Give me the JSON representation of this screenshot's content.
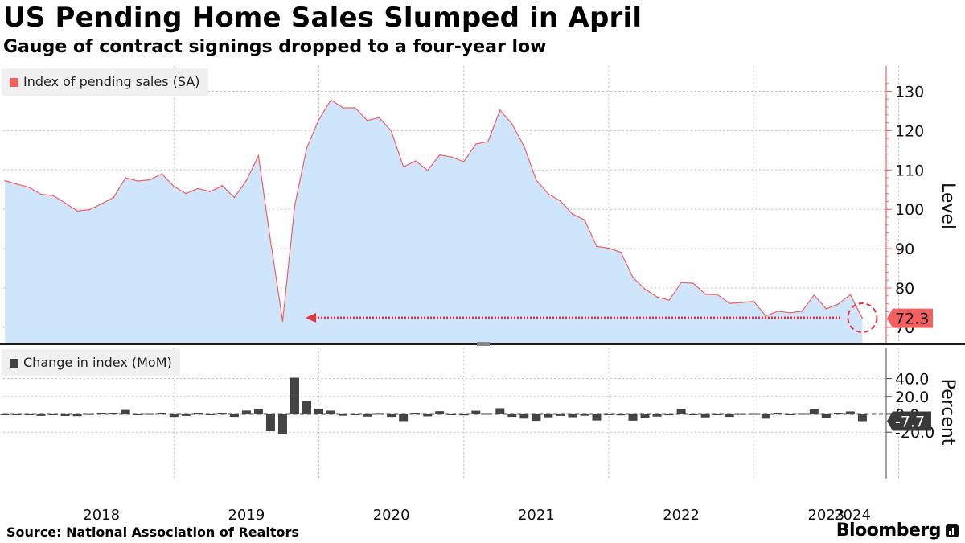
{
  "header": {
    "title": "US Pending Home Sales Slumped in April",
    "subtitle": "Gauge of contract signings dropped to a four-year low"
  },
  "footer": {
    "source": "Source: National Association of Realtors",
    "brand": "Bloomberg"
  },
  "colors": {
    "line": "#f26060",
    "area": "#cfe5fb",
    "bar": "#444444",
    "grid": "#bbbbbb",
    "axis_top": "#f26060",
    "annotation": "#e8333b",
    "last_value_bg": "#f26060"
  },
  "chart_data": [
    {
      "type": "area",
      "legend": "Index of pending sales (SA)",
      "ylabel": "Level",
      "ylim": [
        64,
        134
      ],
      "yticks": [
        "70",
        "80",
        "90",
        "100",
        "110",
        "120",
        "130"
      ],
      "last_value_label": "72.3",
      "x_start": "2017-11",
      "values": [
        107.3,
        106.4,
        105.6,
        103.8,
        103.5,
        101.6,
        99.6,
        99.9,
        101.4,
        103,
        108,
        107.2,
        107.5,
        109,
        105.8,
        104,
        105.3,
        104.5,
        106,
        103,
        107.3,
        113.6,
        92,
        71.6,
        101,
        115.6,
        122.8,
        127.8,
        125.8,
        125.8,
        122.6,
        123.3,
        119.9,
        110.8,
        112.3,
        109.9,
        113.8,
        113.3,
        112.1,
        116.6,
        117.2,
        125.2,
        121.7,
        115.9,
        107.4,
        103.9,
        102.1,
        98.8,
        97.3,
        90.6,
        90.1,
        89.1,
        82.7,
        79.7,
        77.7,
        76.9,
        81.4,
        81.2,
        78.4,
        78.3,
        76.1,
        76.3,
        76.6,
        72.9,
        74.1,
        73.7,
        74.1,
        78.2,
        74.7,
        75.9,
        78.3,
        72.3
      ]
    },
    {
      "type": "bar",
      "legend": "Change in index (MoM)",
      "ylabel": "Percent",
      "ylim": [
        -30,
        48
      ],
      "yticks": [
        "40.0",
        "20.0",
        "0.0",
        "-20.0"
      ],
      "last_value_label": "-7.7",
      "x_start": "2017-11",
      "values": [
        -0.5,
        -0.8,
        -0.8,
        -1.7,
        -0.3,
        -1.8,
        -2,
        0.3,
        1.5,
        1.6,
        4.9,
        -0.8,
        0.4,
        1.4,
        -2.9,
        -1.7,
        1.3,
        -0.8,
        1.8,
        -2.8,
        4.2,
        5.9,
        -19,
        -22.2,
        41,
        15.3,
        6.3,
        4.1,
        -1.5,
        0,
        -2.5,
        0.6,
        -2.8,
        -7.6,
        1.4,
        -2.2,
        3.5,
        -0.4,
        -1.1,
        4,
        0.5,
        6.8,
        -2.8,
        -4.8,
        -7.3,
        -3.3,
        -1.7,
        -3.2,
        -1.5,
        -6.9,
        -0.6,
        -1.1,
        -7.1,
        -3.6,
        -2.5,
        -1.0,
        5.9,
        -0.2,
        -3.4,
        -0.1,
        -2.8,
        0.3,
        0.4,
        -4.8,
        1.6,
        -0.5,
        0.5,
        5.5,
        -4.5,
        1.6,
        3.2,
        -7.7
      ]
    }
  ],
  "x_axis": {
    "years": [
      "2018",
      "2019",
      "2020",
      "2021",
      "2022",
      "2023",
      "2024"
    ]
  }
}
